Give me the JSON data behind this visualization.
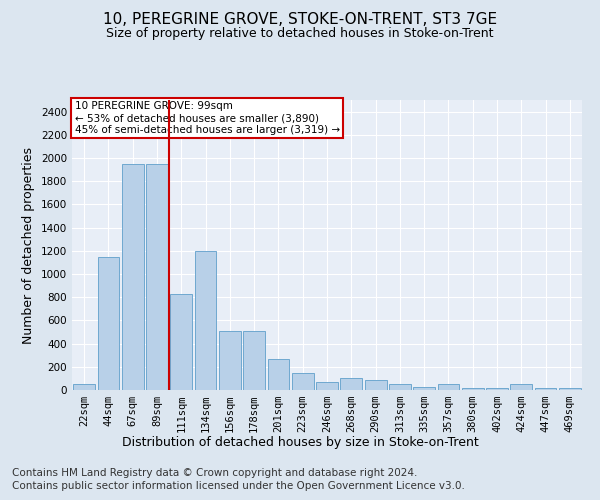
{
  "title": "10, PEREGRINE GROVE, STOKE-ON-TRENT, ST3 7GE",
  "subtitle": "Size of property relative to detached houses in Stoke-on-Trent",
  "xlabel": "Distribution of detached houses by size in Stoke-on-Trent",
  "ylabel": "Number of detached properties",
  "categories": [
    "22sqm",
    "44sqm",
    "67sqm",
    "89sqm",
    "111sqm",
    "134sqm",
    "156sqm",
    "178sqm",
    "201sqm",
    "223sqm",
    "246sqm",
    "268sqm",
    "290sqm",
    "313sqm",
    "335sqm",
    "357sqm",
    "380sqm",
    "402sqm",
    "424sqm",
    "447sqm",
    "469sqm"
  ],
  "values": [
    50,
    1150,
    1950,
    1950,
    830,
    1200,
    510,
    510,
    270,
    150,
    70,
    100,
    90,
    50,
    25,
    50,
    15,
    15,
    50,
    15,
    15
  ],
  "bar_color": "#b8d0e8",
  "bar_edge_color": "#6fa8d0",
  "vline_x": 3.5,
  "vline_color": "#cc0000",
  "ylim": [
    0,
    2500
  ],
  "yticks": [
    0,
    200,
    400,
    600,
    800,
    1000,
    1200,
    1400,
    1600,
    1800,
    2000,
    2200,
    2400
  ],
  "annotation_text": "10 PEREGRINE GROVE: 99sqm\n← 53% of detached houses are smaller (3,890)\n45% of semi-detached houses are larger (3,319) →",
  "annotation_box_color": "#ffffff",
  "annotation_box_edge": "#cc0000",
  "footer1": "Contains HM Land Registry data © Crown copyright and database right 2024.",
  "footer2": "Contains public sector information licensed under the Open Government Licence v3.0.",
  "bg_color": "#dce6f0",
  "plot_bg_color": "#e8eef7",
  "title_fontsize": 11,
  "subtitle_fontsize": 9,
  "tick_fontsize": 7.5,
  "label_fontsize": 9,
  "footer_fontsize": 7.5
}
